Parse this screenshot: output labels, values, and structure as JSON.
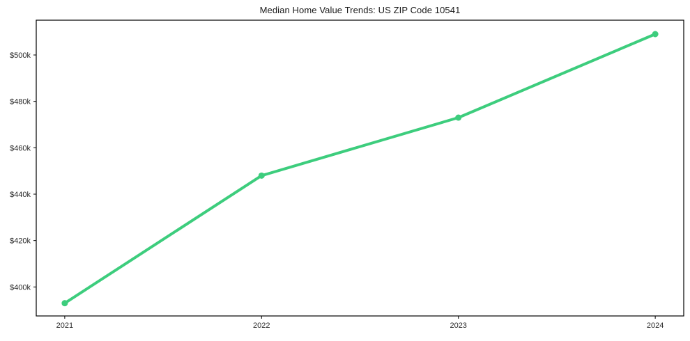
{
  "chart": {
    "title": "Median Home Value Trends: US ZIP Code 10541",
    "colors": {
      "line": "#3dcd7d",
      "marker": "#3dcd7d",
      "frame": "#000000",
      "tick_text": "#262626",
      "background": "#ffffff"
    }
  },
  "chart_data": {
    "type": "line",
    "title": "Median Home Value Trends: US ZIP Code 10541",
    "categories": [
      "2021",
      "2022",
      "2023",
      "2024"
    ],
    "x": [
      2021,
      2022,
      2023,
      2024
    ],
    "series": [
      {
        "name": "Median Home Value",
        "values": [
          393000,
          448000,
          473000,
          509000
        ]
      }
    ],
    "y_ticks": {
      "values": [
        400000,
        420000,
        440000,
        460000,
        480000,
        500000
      ],
      "labels": [
        "$400k",
        "$420k",
        "$440k",
        "$460k",
        "$480k",
        "$500k"
      ]
    },
    "ylim": [
      387500,
      515000
    ],
    "xlabel": "",
    "ylabel": "",
    "grid": false,
    "legend_position": "none",
    "marker": "circle",
    "line_color": "#3dcd7d"
  }
}
